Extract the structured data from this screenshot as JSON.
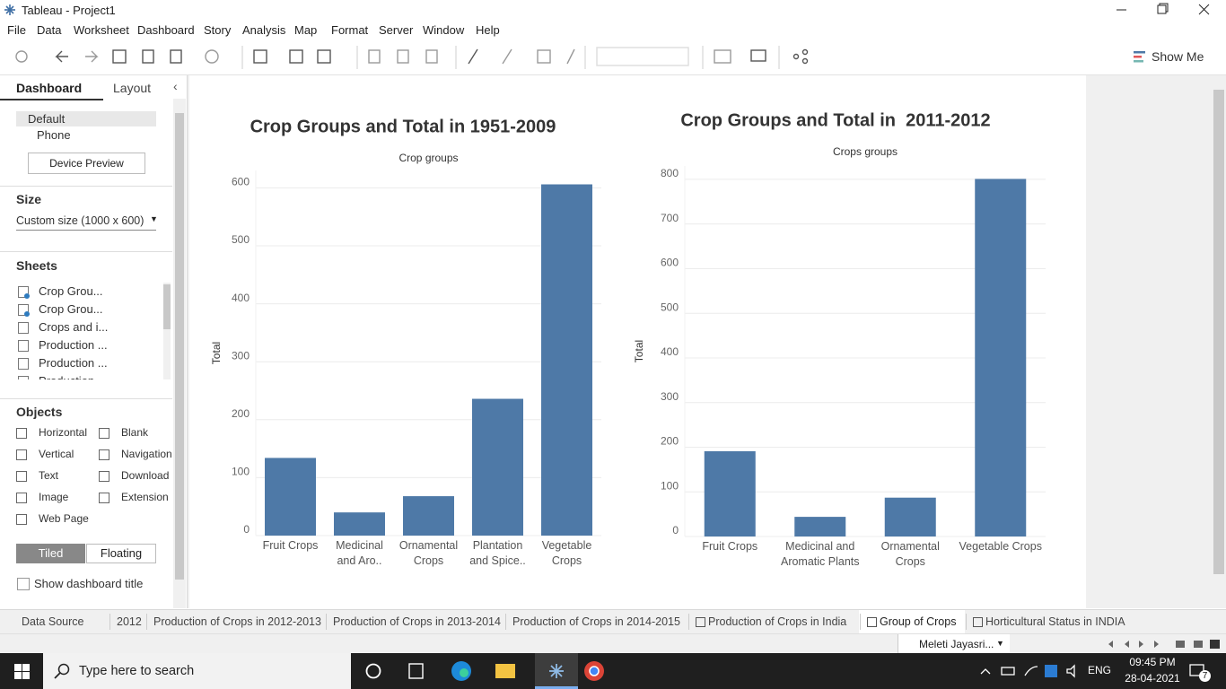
{
  "window": {
    "title": "Tableau - Project1"
  },
  "menu": [
    "File",
    "Data",
    "Worksheet",
    "Dashboard",
    "Story",
    "Analysis",
    "Map",
    "Format",
    "Server",
    "Window",
    "Help"
  ],
  "toolbar": {
    "show_me": "Show Me"
  },
  "sidebar": {
    "tabs": [
      "Dashboard",
      "Layout"
    ],
    "devices": [
      "Default",
      "Phone"
    ],
    "device_preview": "Device Preview",
    "size_heading": "Size",
    "size_value": "Custom size (1000 x 600)",
    "sheets_heading": "Sheets",
    "sheets": [
      "Crop Grou...",
      "Crop Grou...",
      "Crops and i...",
      "Production ...",
      "Production ...",
      "Production"
    ],
    "objects_heading": "Objects",
    "objects": [
      "Horizontal",
      "Blank",
      "Vertical",
      "Navigation",
      "Text",
      "Download",
      "Image",
      "Extension",
      "Web Page"
    ],
    "layout_modes": [
      "Tiled",
      "Floating"
    ],
    "show_title": "Show dashboard title"
  },
  "chart_data": [
    {
      "type": "bar",
      "title": "Crop Groups and Total in 1951-2009",
      "x_label": "Crop groups",
      "y_label": "Total",
      "categories": [
        "Fruit Crops",
        "Medicinal and Aro..",
        "Ornamental Crops",
        "Plantation and Spice..",
        "Vegetable Crops"
      ],
      "values": [
        134,
        40,
        68,
        236,
        606
      ],
      "color": "#4e79a7",
      "ylim": [
        0,
        630
      ],
      "yticks": [
        0,
        100,
        200,
        300,
        400,
        500,
        600
      ],
      "grid": true
    },
    {
      "type": "bar",
      "title": "Crop Groups and Total in  2011-2012",
      "x_label": "Crops groups",
      "y_label": "Total",
      "categories": [
        "Fruit Crops",
        "Medicinal and Aromatic Plants",
        "Ornamental Crops",
        "Vegetable Crops"
      ],
      "values": [
        191,
        44,
        87,
        801
      ],
      "color": "#4e79a7",
      "ylim": [
        0,
        830
      ],
      "yticks": [
        0,
        100,
        200,
        300,
        400,
        500,
        600,
        700,
        800
      ],
      "grid": true
    }
  ],
  "sheet_tabs": [
    "Data Source",
    "2012",
    "Production of Crops in 2012-2013",
    "Production of Crops in 2013-2014",
    "Production of Crops in 2014-2015",
    "Production of Crops in India",
    "Group of Crops",
    "Horticultural Status in INDIA"
  ],
  "status": {
    "user": "Meleti Jayasri..."
  },
  "taskbar": {
    "search": "Type here to search",
    "language": "ENG",
    "time": "09:45 PM",
    "date": "28-04-2021",
    "notifications": "7"
  }
}
